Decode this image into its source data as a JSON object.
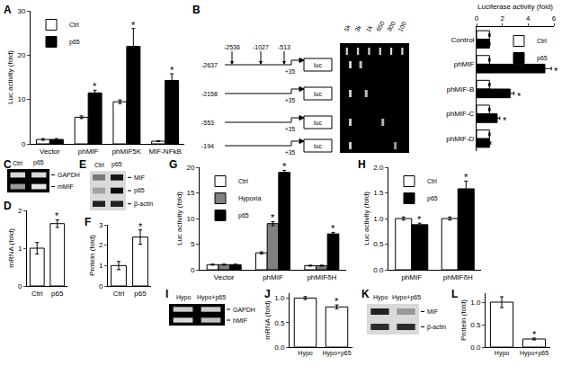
{
  "chart_data": [
    {
      "type": "bar",
      "panel": "A",
      "categories": [
        "Vector",
        "phMIF",
        "phMIF5K",
        "MIF-NFkB"
      ],
      "ylabel": "Luc activity (fold)",
      "ylim": [
        0,
        30
      ],
      "yticks": [
        0,
        10,
        20,
        30
      ],
      "grid": false,
      "legend": "top-left",
      "series": [
        {
          "name": "Ctrl",
          "color": "#ffffff",
          "values": [
            1,
            6,
            9.5,
            0.6
          ],
          "errors": [
            0.2,
            0.3,
            0.4,
            0.1
          ]
        },
        {
          "name": "p65",
          "color": "#000000",
          "values": [
            1,
            11.5,
            22,
            14.3
          ],
          "errors": [
            0.2,
            0.6,
            4,
            1.5
          ]
        }
      ],
      "annotations": [
        {
          "series": "p65",
          "category": "phMIF",
          "text": "*"
        },
        {
          "series": "p65",
          "category": "phMIF5K",
          "text": "*"
        },
        {
          "series": "p65",
          "category": "MIF-NFkB",
          "text": "*"
        }
      ]
    },
    {
      "type": "diagram",
      "panel": "B",
      "sites": [
        "-2536",
        "-1027",
        "-513"
      ],
      "constructs": [
        {
          "start": "-2637",
          "end": "+35",
          "reporter": "luc"
        },
        {
          "start": "-2158",
          "end": "+35",
          "reporter": "luc"
        },
        {
          "start": "-553",
          "end": "+35",
          "reporter": "luc"
        },
        {
          "start": "-194",
          "end": "+35",
          "reporter": "luc"
        }
      ]
    },
    {
      "type": "gel",
      "color": "#000000",
      "ladder": [
        "5k",
        "3k",
        "1k",
        "650",
        "300",
        "100"
      ],
      "rows": [
        {
          "intensities": [
            0.8,
            0.75
          ]
        },
        {
          "intensities": [
            0.8,
            0.75
          ]
        },
        {
          "intensities": [
            0.8,
            0.7
          ]
        },
        {
          "intensities": [
            0.8,
            0.6
          ]
        }
      ]
    },
    {
      "type": "bar",
      "orientation": "horizontal",
      "categories": [
        "Control",
        "phMIF",
        "phMIF-B",
        "phMIF-C",
        "phMIF-D"
      ],
      "xlabel": "Luciferase activity (fold)",
      "xlim": [
        0,
        6
      ],
      "xticks": [
        0,
        2,
        4,
        6
      ],
      "grid": false,
      "legend": "top-right",
      "series": [
        {
          "name": "Ctrl",
          "color": "#ffffff",
          "values": [
            1,
            1,
            1,
            1,
            1
          ],
          "errors": [
            0.05,
            0.05,
            0.05,
            0.05,
            0.05
          ]
        },
        {
          "name": "p65",
          "color": "#000000",
          "values": [
            1,
            5.3,
            2.6,
            1.6,
            1.0
          ],
          "errors": [
            0.05,
            0.5,
            0.3,
            0.2,
            0.1
          ]
        }
      ],
      "annotations": [
        {
          "series": "p65",
          "category": "phMIF",
          "text": "*"
        },
        {
          "series": "p65",
          "category": "phMIF-B",
          "text": "*"
        },
        {
          "series": "p65",
          "category": "phMIF-C",
          "text": "*"
        }
      ]
    },
    {
      "type": "gel",
      "panel": "C",
      "color": "#000000",
      "lanes": [
        "Ctrl",
        "p65"
      ],
      "rows": [
        {
          "name": "GAPDH",
          "intensities": [
            0.85,
            0.85
          ]
        },
        {
          "name": "mMIF",
          "intensities": [
            0.6,
            0.9
          ]
        }
      ]
    },
    {
      "type": "bar",
      "panel": "D",
      "categories": [
        "Ctrl",
        "p65"
      ],
      "ylabel": "mRNA (fold)",
      "ylim": [
        0,
        2
      ],
      "yticks": [
        0,
        1,
        2
      ],
      "grid": false,
      "color": "#ffffff",
      "values": [
        1,
        1.65
      ],
      "errors": [
        0.15,
        0.1
      ],
      "annotations": [
        {
          "category": "p65",
          "text": "*"
        }
      ]
    },
    {
      "type": "gel",
      "panel": "E",
      "color": "#d9d9d9",
      "lanes": [
        "Ctrl",
        "p65"
      ],
      "rows": [
        {
          "name": "MIF",
          "intensities": [
            0.45,
            0.9
          ]
        },
        {
          "name": "p65",
          "intensities": [
            0.25,
            0.95
          ]
        },
        {
          "name": "β-actin",
          "intensities": [
            0.85,
            0.85
          ]
        }
      ]
    },
    {
      "type": "bar",
      "panel": "F",
      "categories": [
        "Ctrl",
        "p65"
      ],
      "ylabel": "Protein (fold)",
      "ylim": [
        0,
        3
      ],
      "yticks": [
        0,
        1,
        2,
        3
      ],
      "grid": false,
      "color": "#ffffff",
      "values": [
        1,
        2.4
      ],
      "errors": [
        0.2,
        0.35
      ],
      "annotations": [
        {
          "category": "p65",
          "text": "*"
        }
      ]
    },
    {
      "type": "bar",
      "panel": "G",
      "categories": [
        "Vector",
        "phMIF",
        "phMIFδH"
      ],
      "ylabel": "Luc activity (fold)",
      "ylim": [
        0,
        20
      ],
      "yticks": [
        0,
        5,
        10,
        15,
        20
      ],
      "grid": false,
      "legend": "top-left",
      "series": [
        {
          "name": "Ctrl",
          "color": "#ffffff",
          "values": [
            1,
            3.3,
            0.8
          ],
          "errors": [
            0.1,
            0.2,
            0.1
          ]
        },
        {
          "name": "Hypoxia",
          "color": "#808080",
          "values": [
            1,
            9,
            0.8
          ],
          "errors": [
            0.1,
            0.4,
            0.1
          ]
        },
        {
          "name": "p65",
          "color": "#000000",
          "values": [
            1,
            19,
            7
          ],
          "errors": [
            0.1,
            0.4,
            0.3
          ]
        }
      ],
      "annotations": [
        {
          "series": "Hypoxia",
          "category": "phMIF",
          "text": "*"
        },
        {
          "series": "p65",
          "category": "phMIF",
          "text": "*"
        },
        {
          "series": "p65",
          "category": "phMIFδH",
          "text": "*"
        }
      ]
    },
    {
      "type": "bar",
      "panel": "H",
      "categories": [
        "phMIF",
        "phMIFδH"
      ],
      "ylabel": "Luc activity (fold)",
      "ylim": [
        0,
        2
      ],
      "yticks": [
        {
          "value": 0,
          "label": "0.0"
        },
        {
          "value": 0.5,
          "label": "0.5"
        },
        {
          "value": 1,
          "label": "1.0"
        },
        {
          "value": 1.5,
          "label": "1.5"
        },
        {
          "value": 2,
          "label": "2.0"
        }
      ],
      "grid": false,
      "legend": "top-left",
      "series": [
        {
          "name": "Ctrl",
          "color": "#ffffff",
          "values": [
            1,
            1
          ],
          "errors": [
            0.03,
            0.03
          ]
        },
        {
          "name": "p65",
          "color": "#000000",
          "values": [
            0.88,
            1.58
          ],
          "errors": [
            0.03,
            0.15
          ]
        }
      ],
      "annotations": [
        {
          "series": "p65",
          "category": "phMIF",
          "text": "*"
        },
        {
          "series": "p65",
          "category": "phMIFδH",
          "text": "*"
        }
      ]
    },
    {
      "type": "gel",
      "panel": "I",
      "color": "#000000",
      "lanes": [
        "Hypo",
        "Hypo+p65"
      ],
      "rows": [
        {
          "name": "GAPDH",
          "intensities": [
            0.8,
            0.8
          ]
        },
        {
          "name": "hMIF",
          "intensities": [
            0.85,
            0.75
          ]
        }
      ]
    },
    {
      "type": "bar",
      "panel": "J",
      "categories": [
        "Hypo",
        "Hypo+p65"
      ],
      "ylabel": "mRNA (fold)",
      "ylim": [
        0,
        1.1
      ],
      "yticks": [
        {
          "value": 0,
          "label": "0.0"
        },
        {
          "value": 0.5,
          "label": "0.5"
        },
        {
          "value": 1,
          "label": "1.0"
        }
      ],
      "grid": false,
      "color": "#ffffff",
      "values": [
        1,
        0.82
      ],
      "errors": [
        0.03,
        0.04
      ],
      "annotations": [
        {
          "category": "Hypo+p65",
          "text": "*"
        }
      ]
    },
    {
      "type": "gel",
      "panel": "K",
      "color": "#d9d9d9",
      "lanes": [
        "Hypo",
        "Hypo+p65"
      ],
      "rows": [
        {
          "name": "MIF",
          "intensities": [
            0.85,
            0.3
          ]
        },
        {
          "name": "β-actin",
          "intensities": [
            0.8,
            0.8
          ]
        }
      ]
    },
    {
      "type": "bar",
      "panel": "L",
      "categories": [
        "Hypo",
        "Hypo+p65"
      ],
      "ylabel": "Protein (fold)",
      "ylim": [
        0,
        1.2
      ],
      "yticks": [
        {
          "value": 0,
          "label": "0.0"
        },
        {
          "value": 0.5,
          "label": "0.5"
        },
        {
          "value": 1,
          "label": "1.0"
        }
      ],
      "grid": false,
      "color": "#ffffff",
      "values": [
        1,
        0.18
      ],
      "errors": [
        0.12,
        0.02
      ],
      "annotations": [
        {
          "category": "Hypo+p65",
          "text": "*"
        }
      ]
    }
  ]
}
